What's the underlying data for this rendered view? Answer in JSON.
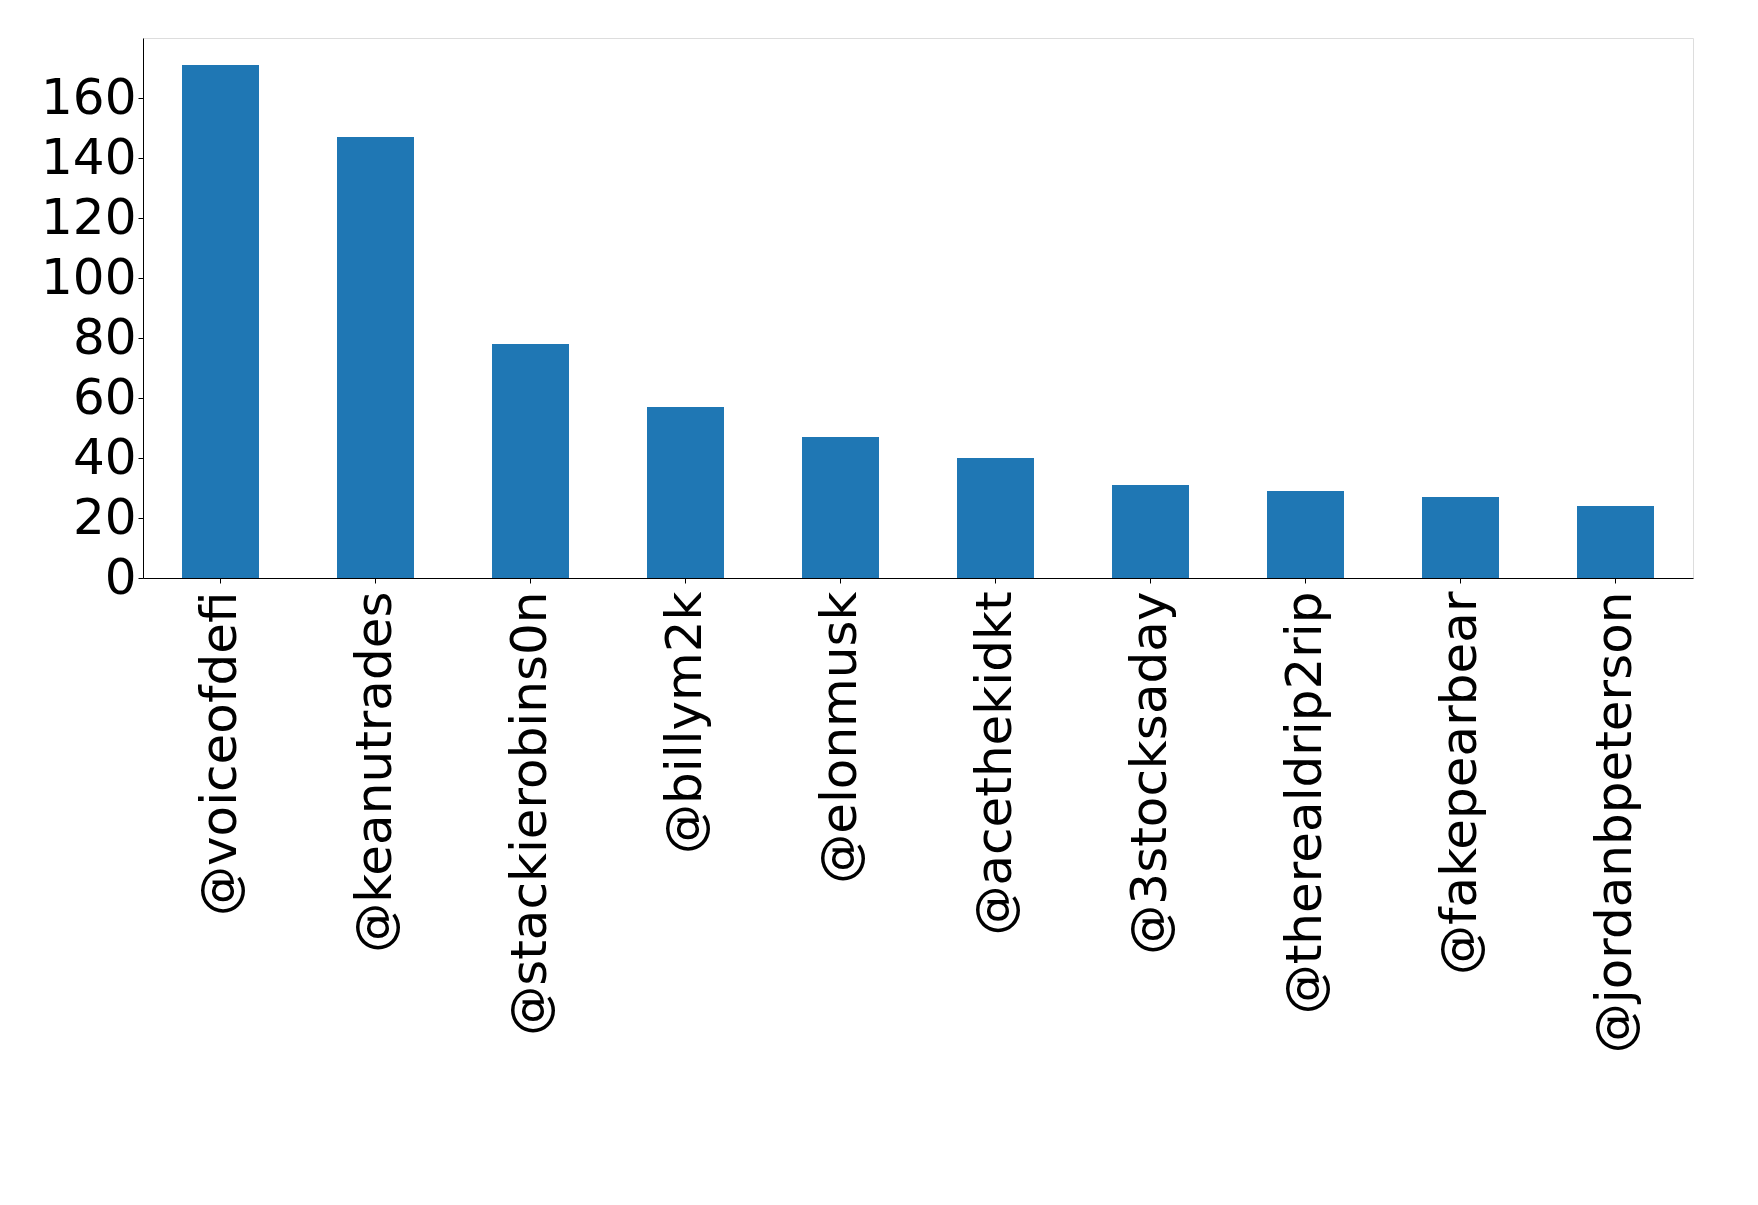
{
  "chart_data": {
    "type": "bar",
    "categories": [
      "@voiceofdefi",
      "@keanutrades",
      "@stackierobins0n",
      "@billym2k",
      "@elonmusk",
      "@acethekidkt",
      "@3stocksaday",
      "@therealdrip2rip",
      "@fakepearbear",
      "@jordanbpeterson"
    ],
    "values": [
      171,
      147,
      78,
      57,
      47,
      40,
      31,
      29,
      27,
      24
    ],
    "color": "#1f77b4",
    "ylim": [
      0,
      180
    ],
    "yticks": [
      0,
      20,
      40,
      60,
      80,
      100,
      120,
      140,
      160
    ],
    "grid": false
  }
}
